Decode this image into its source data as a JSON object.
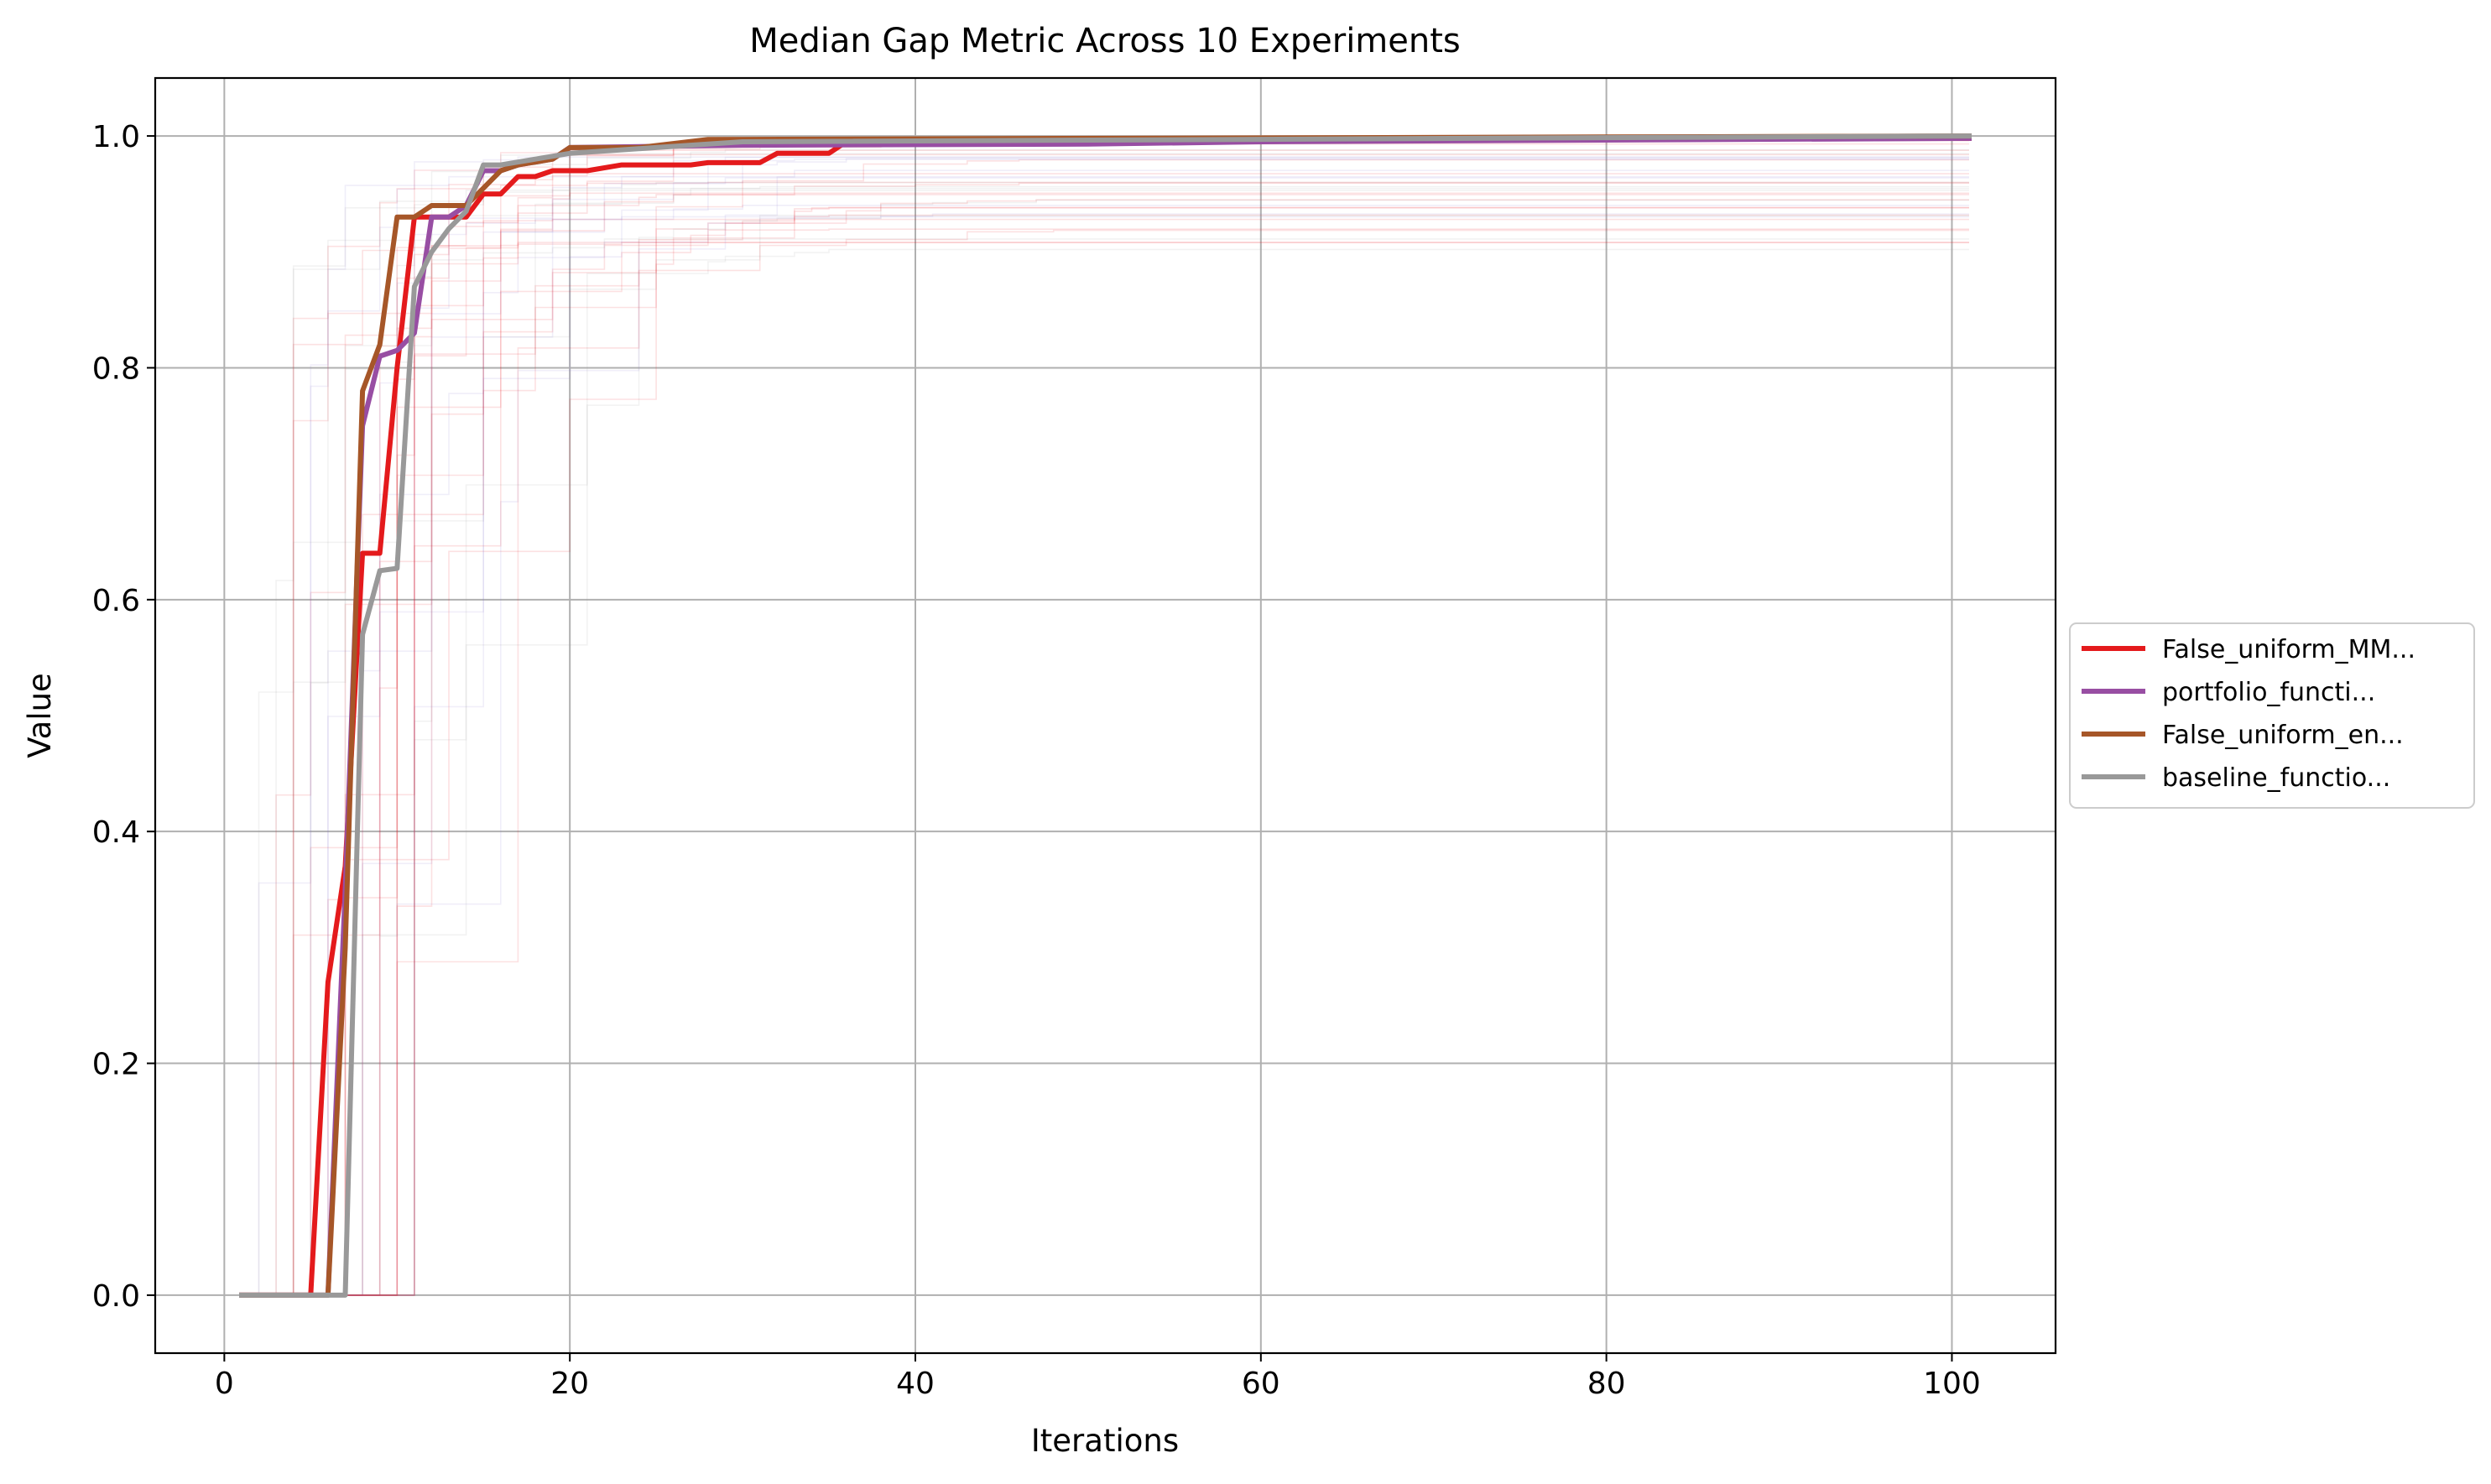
{
  "chart_data": {
    "type": "line",
    "title": "Median Gap Metric Across 10 Experiments",
    "xlabel": "Iterations",
    "ylabel": "Value",
    "xlim": [
      -4,
      106
    ],
    "ylim": [
      -0.05,
      1.05
    ],
    "xticks": [
      0,
      20,
      40,
      60,
      80,
      100
    ],
    "yticks": [
      0.0,
      0.2,
      0.4,
      0.6,
      0.8,
      1.0
    ],
    "grid": true,
    "legend_position": "center-right, outside plot",
    "series": [
      {
        "name": "False_uniform_MM...",
        "color": "#e41a1c",
        "points": [
          [
            1,
            0
          ],
          [
            5,
            0
          ],
          [
            6,
            0.27
          ],
          [
            7,
            0.37
          ],
          [
            8,
            0.64
          ],
          [
            9,
            0.64
          ],
          [
            10,
            0.8
          ],
          [
            11,
            0.93
          ],
          [
            13,
            0.93
          ],
          [
            14,
            0.93
          ],
          [
            15,
            0.95
          ],
          [
            16,
            0.95
          ],
          [
            17,
            0.965
          ],
          [
            18,
            0.965
          ],
          [
            19,
            0.97
          ],
          [
            21,
            0.97
          ],
          [
            23,
            0.975
          ],
          [
            27,
            0.975
          ],
          [
            28,
            0.977
          ],
          [
            31,
            0.977
          ],
          [
            32,
            0.985
          ],
          [
            35,
            0.985
          ],
          [
            36,
            0.995
          ],
          [
            50,
            0.997
          ],
          [
            101,
            0.998
          ]
        ]
      },
      {
        "name": "portfolio_functi...",
        "color": "#984ea3",
        "points": [
          [
            1,
            0
          ],
          [
            6,
            0
          ],
          [
            7,
            0.35
          ],
          [
            8,
            0.75
          ],
          [
            9,
            0.81
          ],
          [
            10,
            0.815
          ],
          [
            11,
            0.83
          ],
          [
            12,
            0.93
          ],
          [
            13,
            0.93
          ],
          [
            14,
            0.94
          ],
          [
            15,
            0.97
          ],
          [
            16,
            0.97
          ],
          [
            17,
            0.975
          ],
          [
            19,
            0.98
          ],
          [
            20,
            0.99
          ],
          [
            30,
            0.992
          ],
          [
            50,
            0.993
          ],
          [
            60,
            0.995
          ],
          [
            101,
            0.998
          ]
        ]
      },
      {
        "name": "False_uniform_en...",
        "color": "#a65628",
        "points": [
          [
            1,
            0
          ],
          [
            6,
            0
          ],
          [
            7,
            0.3
          ],
          [
            8,
            0.78
          ],
          [
            9,
            0.82
          ],
          [
            10,
            0.93
          ],
          [
            11,
            0.93
          ],
          [
            12,
            0.94
          ],
          [
            14,
            0.94
          ],
          [
            15,
            0.955
          ],
          [
            16,
            0.97
          ],
          [
            17,
            0.975
          ],
          [
            19,
            0.98
          ],
          [
            20,
            0.99
          ],
          [
            24,
            0.99
          ],
          [
            28,
            0.997
          ],
          [
            101,
            1.0
          ]
        ]
      },
      {
        "name": "baseline_functio...",
        "color": "#999999",
        "points": [
          [
            1,
            0
          ],
          [
            7,
            0
          ],
          [
            8,
            0.57
          ],
          [
            9,
            0.625
          ],
          [
            10,
            0.627
          ],
          [
            11,
            0.87
          ],
          [
            12,
            0.9
          ],
          [
            13,
            0.92
          ],
          [
            14,
            0.935
          ],
          [
            15,
            0.975
          ],
          [
            16,
            0.975
          ],
          [
            18,
            0.98
          ],
          [
            20,
            0.985
          ],
          [
            25,
            0.99
          ],
          [
            30,
            0.995
          ],
          [
            101,
            1.0
          ]
        ]
      }
    ]
  }
}
